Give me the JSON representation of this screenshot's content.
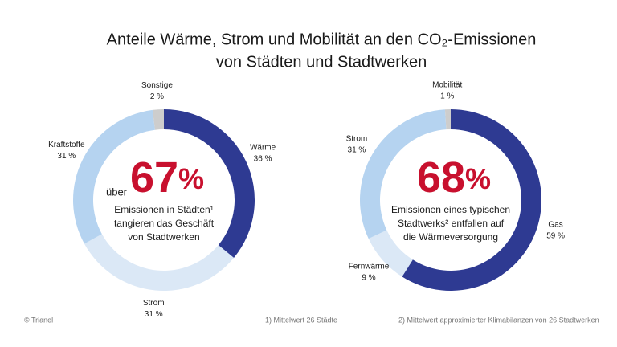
{
  "title": [
    "Anteile Wärme, Strom und Mobilität an den CO₂-Emissionen",
    "von Städten und Stadtwerken"
  ],
  "chart_data": [
    {
      "type": "pie",
      "donut": true,
      "categories": [
        "Wärme",
        "Strom",
        "Kraftstoffe",
        "Sonstige"
      ],
      "values": [
        36,
        31,
        31,
        2
      ],
      "value_labels": [
        "36 %",
        "31 %",
        "31 %",
        "2 %"
      ],
      "colors": [
        "#2e3a92",
        "#dbe8f6",
        "#b5d3f0",
        "#cdcdcd"
      ],
      "center": {
        "prefix": "über",
        "value": 67,
        "unit": "%",
        "lines": [
          "Emissionen in Städten¹",
          "tangieren das Geschäft",
          "von Stadtwerken"
        ]
      }
    },
    {
      "type": "pie",
      "donut": true,
      "categories": [
        "Gas",
        "Fernwärme",
        "Strom",
        "Mobilität"
      ],
      "values": [
        59,
        9,
        31,
        1
      ],
      "value_labels": [
        "59 %",
        "9 %",
        "31 %",
        "1 %"
      ],
      "colors": [
        "#2e3a92",
        "#dbe8f6",
        "#b5d3f0",
        "#cdcdcd"
      ],
      "center": {
        "value": 68,
        "unit": "%",
        "lines": [
          "Emissionen eines typischen",
          "Stadtwerks² entfallen auf",
          "die Wärmeversorgung"
        ]
      }
    }
  ],
  "footer": {
    "copyright": "© Trianel",
    "notes": [
      "1) Mittelwert 26 Städte",
      "2) Mittelwert approximierter Klimabilanzen von 26 Stadtwerken"
    ]
  }
}
